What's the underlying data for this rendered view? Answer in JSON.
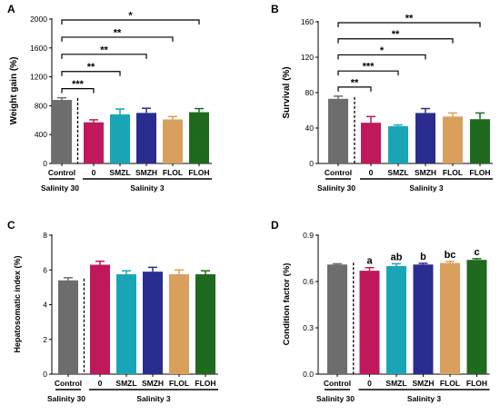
{
  "colors": {
    "Control": "#6d6d6d",
    "0": "#c0185a",
    "SMZL": "#1aa5b7",
    "SMZH": "#2a2c8f",
    "FLOL": "#d9a05d",
    "FLOH": "#1f6a1f"
  },
  "chart_data": [
    {
      "panel": "A",
      "type": "bar",
      "ylabel": "Weight gain (%)",
      "ylim": [
        0,
        2000
      ],
      "yticks": [
        0,
        400,
        800,
        1200,
        1600,
        2000
      ],
      "categories": [
        "Control",
        "0",
        "SMZL",
        "SMZH",
        "FLOL",
        "FLOH"
      ],
      "values": [
        880,
        570,
        680,
        700,
        610,
        710
      ],
      "errors": [
        30,
        35,
        75,
        65,
        40,
        50
      ],
      "group_labels": [
        "Salinity 30",
        "Salinity 3"
      ],
      "significance": [
        {
          "to": "0",
          "label": "***"
        },
        {
          "to": "SMZL",
          "label": "**"
        },
        {
          "to": "SMZH",
          "label": "**"
        },
        {
          "to": "FLOL",
          "label": "**"
        },
        {
          "to": "FLOH",
          "label": "*"
        }
      ]
    },
    {
      "panel": "B",
      "type": "bar",
      "ylabel": "Survival (%)",
      "ylim": [
        0,
        160
      ],
      "yticks": [
        0,
        40,
        80,
        120,
        160
      ],
      "categories": [
        "Control",
        "0",
        "SMZL",
        "SMZH",
        "FLOL",
        "FLOH"
      ],
      "values": [
        73,
        46,
        42,
        57,
        53,
        50
      ],
      "errors": [
        3,
        7,
        1.5,
        5,
        4,
        7
      ],
      "group_labels": [
        "Salinity 30",
        "Salinity 3"
      ],
      "significance": [
        {
          "to": "0",
          "label": "**"
        },
        {
          "to": "SMZL",
          "label": "***"
        },
        {
          "to": "SMZH",
          "label": "*"
        },
        {
          "to": "FLOL",
          "label": "**"
        },
        {
          "to": "FLOH",
          "label": "**"
        }
      ]
    },
    {
      "panel": "C",
      "type": "bar",
      "ylabel": "Hepatosomatic index (%)",
      "ylim": [
        0,
        8
      ],
      "yticks": [
        0,
        2,
        4,
        6,
        8
      ],
      "categories": [
        "Control",
        "0",
        "SMZL",
        "SMZH",
        "FLOL",
        "FLOH"
      ],
      "values": [
        5.4,
        6.3,
        5.75,
        5.9,
        5.75,
        5.75
      ],
      "errors": [
        0.15,
        0.2,
        0.2,
        0.25,
        0.25,
        0.2
      ],
      "group_labels": [
        "Salinity 30",
        "Salinity 3"
      ]
    },
    {
      "panel": "D",
      "type": "bar",
      "ylabel": "Condition factor (%)",
      "ylim": [
        0,
        0.9
      ],
      "yticks": [
        0.0,
        0.3,
        0.6,
        0.9
      ],
      "categories": [
        "Control",
        "0",
        "SMZL",
        "SMZH",
        "FLOL",
        "FLOH"
      ],
      "values": [
        0.71,
        0.67,
        0.7,
        0.71,
        0.72,
        0.74
      ],
      "errors": [
        0.005,
        0.02,
        0.015,
        0.008,
        0.01,
        0.008
      ],
      "group_labels": [
        "Salinity 30",
        "Salinity 3"
      ],
      "letters": [
        "",
        "a",
        "ab",
        "b",
        "bc",
        "c"
      ]
    }
  ]
}
